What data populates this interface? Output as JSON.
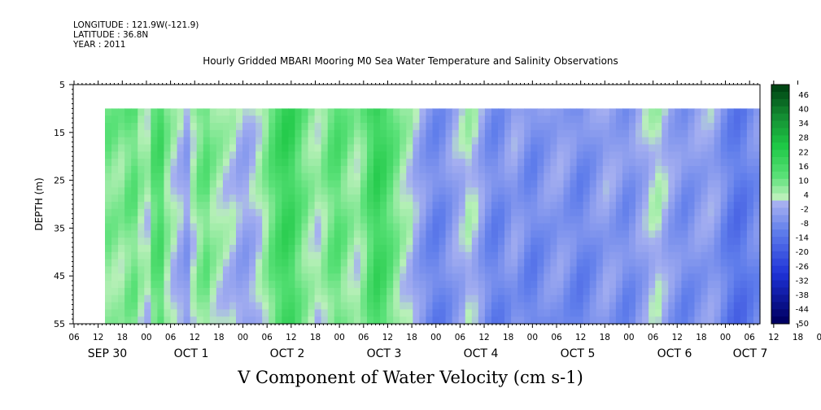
{
  "header": {
    "longitude": "LONGITUDE : 121.9W(-121.9)",
    "latitude": "LATITUDE : 36.8N",
    "year": "YEAR : 2011"
  },
  "chart_data": {
    "type": "heatmap",
    "title": "Hourly Gridded MBARI Mooring M0 Sea Water Temperature and Salinity Observations",
    "xlabel": "V Component of Water Velocity (cm s-1)",
    "ylabel": "DEPTH (m)",
    "ylim": [
      55,
      5
    ],
    "y_ticks": [
      5,
      15,
      25,
      35,
      45,
      55
    ],
    "data_depth_range": [
      10,
      55
    ],
    "x_hour_ticks": [
      "06",
      "12",
      "18",
      "00",
      "06",
      "12",
      "18",
      "00",
      "06",
      "12",
      "18",
      "00",
      "06",
      "12",
      "18",
      "00",
      "06",
      "12",
      "18",
      "00",
      "06",
      "12",
      "18",
      "00",
      "06",
      "12",
      "18",
      "00",
      "06",
      "12",
      "18",
      "00",
      "06"
    ],
    "x_date_labels": [
      "SEP 30",
      "OCT 1",
      "OCT 2",
      "OCT 3",
      "OCT 4",
      "OCT 5",
      "OCT 6",
      "OCT 7"
    ],
    "colorbar_labels": [
      "46",
      "40",
      "34",
      "28",
      "22",
      "16",
      "10",
      "4",
      "-2",
      "-8",
      "-14",
      "-20",
      "-26",
      "-32",
      "-38",
      "-44",
      "-50"
    ],
    "colorbar_range": [
      -50,
      46
    ],
    "colorbar_step": 3,
    "column_values": [
      8,
      7,
      6,
      9,
      10,
      5,
      3,
      12,
      14,
      6,
      2,
      -1,
      -4,
      3,
      8,
      10,
      6,
      4,
      2,
      1,
      -2,
      -3,
      -1,
      2,
      6,
      11,
      15,
      18,
      17,
      12,
      8,
      5,
      3,
      6,
      10,
      12,
      9,
      6,
      4,
      8,
      14,
      18,
      16,
      12,
      8,
      4,
      2,
      -2,
      -5,
      -8,
      -10,
      -9,
      -6,
      -3,
      -1,
      2,
      0,
      -4,
      -8,
      -10,
      -9,
      -6,
      -4,
      -6,
      -9,
      -10,
      -8,
      -6,
      -5,
      -4,
      -6,
      -8,
      -10,
      -9,
      -7,
      -5,
      -3,
      -4,
      -6,
      -8,
      -7,
      -4,
      -2,
      1,
      2,
      -1,
      -4,
      -6,
      -8,
      -7,
      -5,
      -4,
      -3,
      -5,
      -9,
      -12,
      -14,
      -13,
      -10,
      -8
    ],
    "colors": {
      "plot_border": "#000000",
      "blank_region": "#ffffff"
    }
  }
}
